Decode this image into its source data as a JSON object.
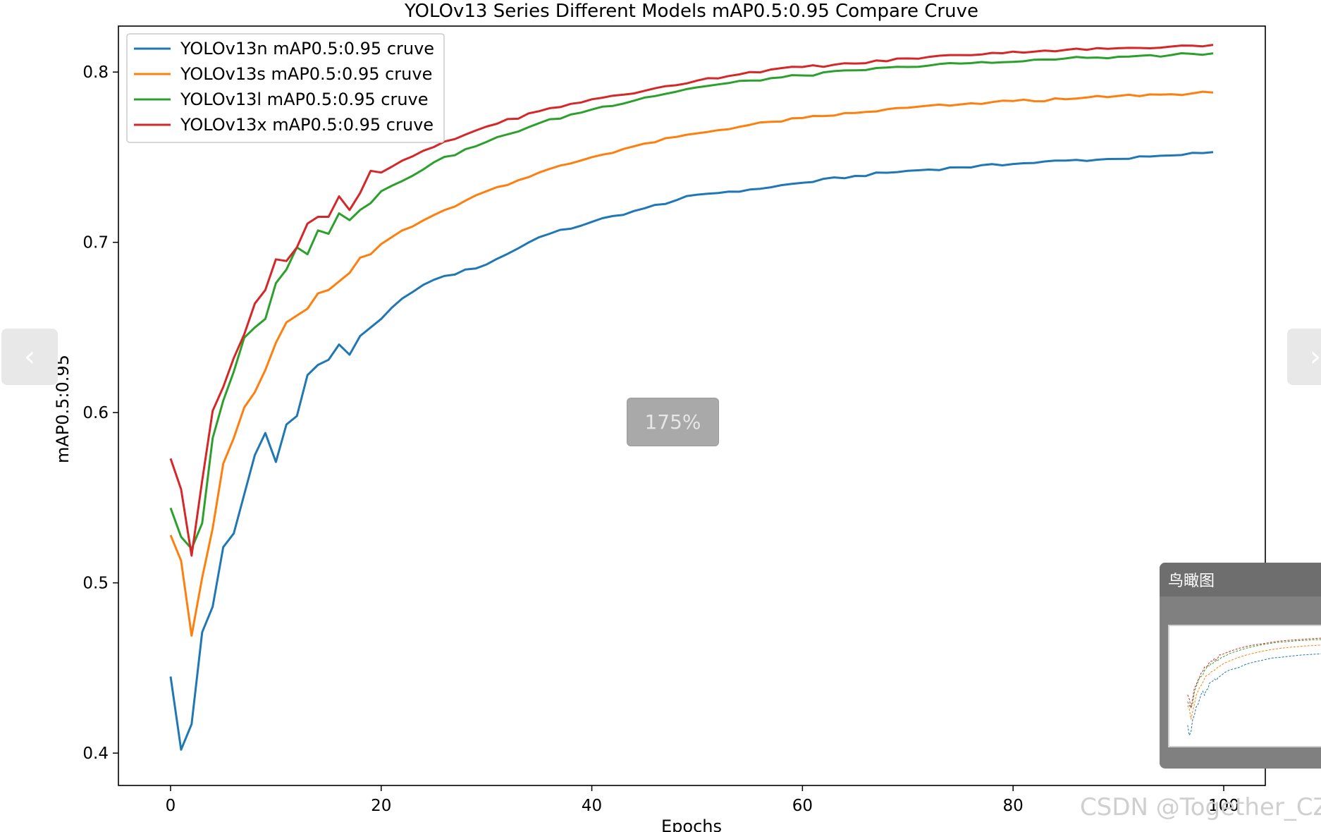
{
  "chart_data": {
    "type": "line",
    "title": "YOLOv13 Series Different Models mAP0.5:0.95 Compare Cruve",
    "xlabel": "Epochs",
    "ylabel": "mAP0.5:0.95",
    "xlim": [
      -4.95,
      103.95
    ],
    "ylim": [
      0.381,
      0.827
    ],
    "xticks": [
      0,
      20,
      40,
      60,
      80,
      100
    ],
    "yticks": [
      0.4,
      0.5,
      0.6,
      0.7,
      0.8
    ],
    "grid": false,
    "legend": "top-left",
    "x_anchors": [
      0,
      1,
      2,
      3,
      4,
      5,
      6,
      7,
      8,
      9,
      10,
      11,
      12,
      13,
      14,
      15,
      16,
      17,
      18,
      19,
      20,
      22,
      25,
      30,
      35,
      40,
      45,
      50,
      55,
      60,
      65,
      70,
      75,
      80,
      85,
      90,
      95,
      99
    ],
    "series": [
      {
        "name": "YOLOv13n mAP0.5:0.95 cruve",
        "color": "#1f77b4",
        "values": [
          0.445,
          0.402,
          0.417,
          0.471,
          0.486,
          0.521,
          0.529,
          0.552,
          0.575,
          0.588,
          0.571,
          0.593,
          0.598,
          0.622,
          0.628,
          0.631,
          0.64,
          0.634,
          0.645,
          0.65,
          0.655,
          0.667,
          0.678,
          0.687,
          0.703,
          0.712,
          0.72,
          0.728,
          0.731,
          0.735,
          0.739,
          0.742,
          0.744,
          0.746,
          0.748,
          0.749,
          0.751,
          0.753
        ]
      },
      {
        "name": "YOLOv13s mAP0.5:0.95 cruve",
        "color": "#ff7f0e",
        "values": [
          0.528,
          0.513,
          0.469,
          0.503,
          0.532,
          0.57,
          0.585,
          0.603,
          0.612,
          0.625,
          0.641,
          0.653,
          0.657,
          0.661,
          0.67,
          0.672,
          0.677,
          0.682,
          0.691,
          0.693,
          0.699,
          0.707,
          0.716,
          0.73,
          0.741,
          0.75,
          0.758,
          0.764,
          0.769,
          0.773,
          0.776,
          0.779,
          0.781,
          0.783,
          0.784,
          0.786,
          0.787,
          0.788
        ]
      },
      {
        "name": "YOLOv13l mAP0.5:0.95 cruve",
        "color": "#2ca02c",
        "values": [
          0.544,
          0.527,
          0.52,
          0.535,
          0.585,
          0.607,
          0.624,
          0.644,
          0.65,
          0.655,
          0.676,
          0.684,
          0.697,
          0.693,
          0.707,
          0.705,
          0.717,
          0.713,
          0.719,
          0.723,
          0.73,
          0.736,
          0.747,
          0.759,
          0.77,
          0.778,
          0.785,
          0.791,
          0.795,
          0.798,
          0.801,
          0.803,
          0.805,
          0.806,
          0.808,
          0.809,
          0.81,
          0.811
        ]
      },
      {
        "name": "YOLOv13x mAP0.5:0.95 cruve",
        "color": "#d62728",
        "values": [
          0.573,
          0.555,
          0.516,
          0.56,
          0.601,
          0.615,
          0.632,
          0.646,
          0.664,
          0.672,
          0.69,
          0.689,
          0.697,
          0.711,
          0.715,
          0.715,
          0.727,
          0.719,
          0.729,
          0.742,
          0.741,
          0.748,
          0.756,
          0.768,
          0.777,
          0.784,
          0.789,
          0.795,
          0.8,
          0.803,
          0.805,
          0.808,
          0.81,
          0.812,
          0.813,
          0.814,
          0.815,
          0.816
        ]
      }
    ]
  },
  "viewer": {
    "zoom_label": "175%",
    "overview_title": "鸟瞰图",
    "watermark": "CSDN @Together_CZ",
    "prev_icon": "chevron-left-icon",
    "next_icon": "chevron-right-icon"
  }
}
